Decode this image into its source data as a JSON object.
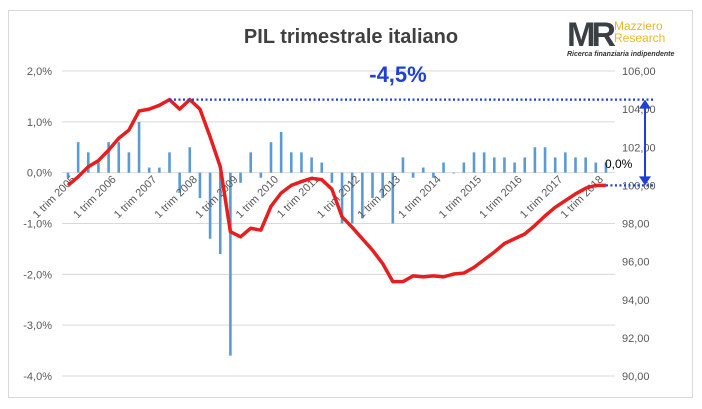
{
  "chart_data": {
    "type": "bar+line",
    "title": "PIL trimestrale italiano",
    "annotation_main": "-4,5%",
    "annotation_last": "0,0%",
    "logo": {
      "brand": "MR",
      "name_line1": "Mazziero",
      "name_line2": "Research",
      "tagline": "Ricerca finanziaria indipendente"
    },
    "x_tick_labels": [
      "1 trim 2005",
      "1 trim 2006",
      "1 trim 2007",
      "1 trim 2008",
      "1 trim 2009",
      "1 trim 2010",
      "1 trim 2011",
      "1 trim 2012",
      "1 trim 2013",
      "1 trim 2014",
      "1 trim 2015",
      "1 trim 2016",
      "1 trim 2017",
      "1 trim 2018"
    ],
    "y_left": {
      "ylim": [
        -4,
        2
      ],
      "ticks": [
        "-4,0%",
        "-3,0%",
        "-2,0%",
        "-1,0%",
        "0,0%",
        "1,0%",
        "2,0%"
      ]
    },
    "y_right": {
      "ylim": [
        90,
        106
      ],
      "ticks": [
        "90,00",
        "92,00",
        "94,00",
        "96,00",
        "98,00",
        "100,00",
        "102,00",
        "104,00",
        "106,00"
      ]
    },
    "grid": true,
    "colors": {
      "bars": "#5b9bd5",
      "line": "#e61e1e",
      "annotation": "#1f3fd6"
    },
    "series": [
      {
        "type": "bar",
        "axis": "left",
        "values": [
          -0.1,
          0.6,
          0.4,
          0.2,
          0.6,
          0.6,
          0.4,
          1.0,
          0.1,
          0.1,
          0.4,
          -0.4,
          0.5,
          -0.5,
          -1.3,
          -1.6,
          -3.6,
          -0.2,
          0.4,
          -0.1,
          0.6,
          0.8,
          0.4,
          0.4,
          0.3,
          0.2,
          -0.2,
          -1.0,
          -1.0,
          -0.9,
          -0.5,
          -0.5,
          -1.0,
          0.3,
          -0.1,
          0.1,
          -0.1,
          0.2,
          0.0,
          0.2,
          0.4,
          0.4,
          0.3,
          0.3,
          0.2,
          0.3,
          0.5,
          0.5,
          0.3,
          0.4,
          0.3,
          0.3,
          0.2,
          0.2
        ]
      },
      {
        "type": "line",
        "axis": "right",
        "values": [
          100.0,
          100.45,
          100.98,
          101.3,
          101.85,
          102.47,
          102.9,
          103.9,
          104.0,
          104.2,
          104.5,
          104.0,
          104.5,
          104.0,
          102.55,
          100.98,
          97.57,
          97.3,
          97.75,
          97.65,
          98.9,
          99.6,
          100.0,
          100.2,
          100.37,
          100.3,
          99.8,
          98.35,
          97.8,
          97.2,
          96.6,
          95.9,
          94.95,
          94.95,
          95.25,
          95.2,
          95.25,
          95.2,
          95.35,
          95.4,
          95.7,
          96.1,
          96.5,
          96.95,
          97.2,
          97.45,
          97.9,
          98.4,
          98.85,
          99.2,
          99.55,
          99.85,
          100.0,
          100.0
        ]
      }
    ]
  }
}
